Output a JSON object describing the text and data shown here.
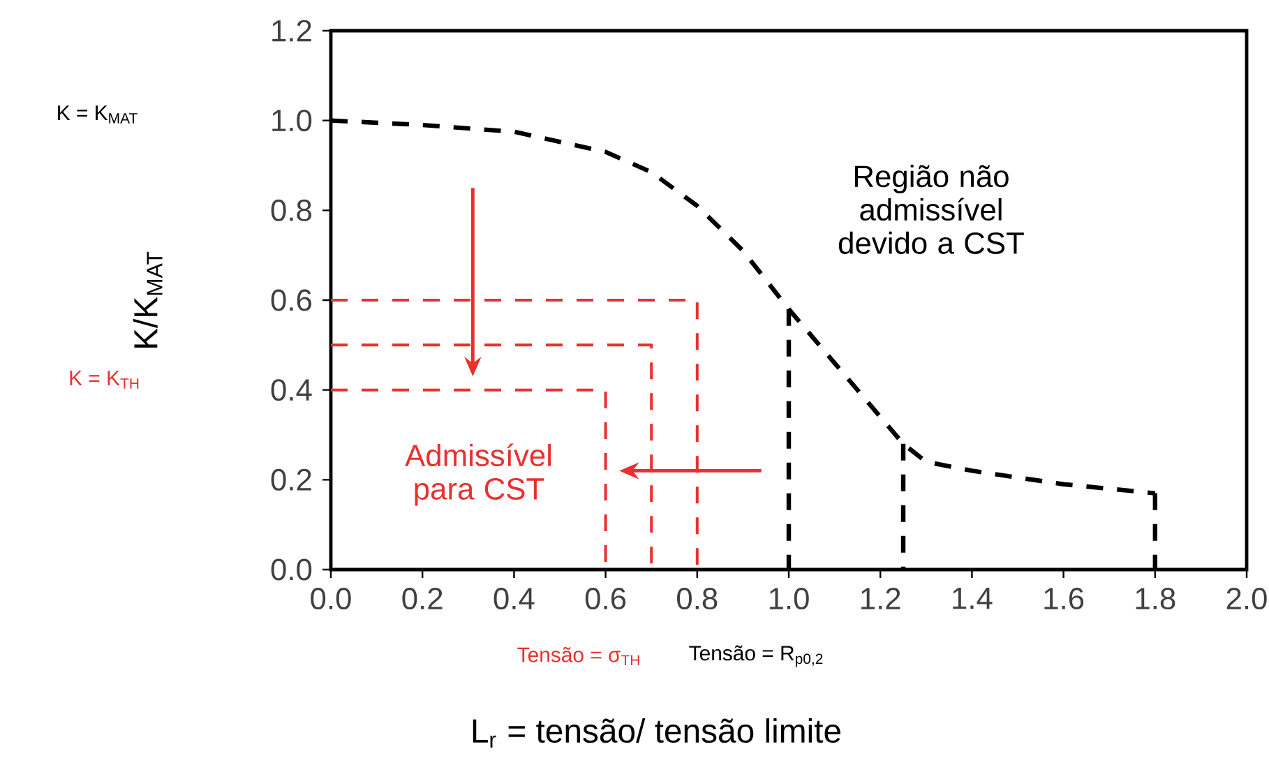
{
  "chart_data": {
    "type": "line",
    "xlabel": "L$_{r}$ = tensão/ tensão limite",
    "ylabel": "K/K$_{MAT}$",
    "xlim": [
      0,
      2.0
    ],
    "ylim": [
      0,
      1.2
    ],
    "xticks": [
      {
        "value": 0,
        "label": "0.0"
      },
      0.2,
      0.4,
      0.6,
      0.8,
      {
        "value": 1.0,
        "label": "1.0"
      },
      1.2,
      1.4,
      1.6,
      1.8,
      {
        "value": 2.0,
        "label": "2.0"
      }
    ],
    "yticks": [
      {
        "value": 0,
        "label": "0.0"
      },
      0.2,
      0.4,
      0.6,
      0.8,
      {
        "value": 1.0,
        "label": "1.0"
      },
      1.2
    ],
    "grid": false,
    "marker": "none",
    "series": [
      {
        "color": "#000000",
        "line_style": "dashed",
        "x": [
          0,
          0.2,
          0.4,
          0.6,
          0.7,
          0.8,
          0.9,
          1.0,
          1.1,
          1.2,
          1.25,
          1.3,
          1.4,
          1.6,
          1.8
        ],
        "values": [
          1.0,
          0.99,
          0.975,
          0.93,
          0.885,
          0.81,
          0.71,
          0.58,
          0.46,
          0.34,
          0.28,
          0.24,
          0.22,
          0.19,
          0.17
        ]
      },
      {
        "color": "#000000",
        "line_style": "dashed",
        "x": [
          1.0,
          1.0
        ],
        "values": [
          0.58,
          0
        ]
      },
      {
        "color": "#000000",
        "line_style": "dashed",
        "x": [
          1.25,
          1.25
        ],
        "values": [
          0.28,
          0
        ]
      },
      {
        "color": "#000000",
        "line_style": "dashed",
        "x": [
          1.8,
          1.8
        ],
        "values": [
          0.17,
          0
        ]
      },
      {
        "color": "#e8312f",
        "line_style": "dashed",
        "x": [
          0,
          0.8,
          0.8
        ],
        "values": [
          0.6,
          0.6,
          0
        ]
      },
      {
        "color": "#e8312f",
        "line_style": "dashed",
        "x": [
          0,
          0.7,
          0.7
        ],
        "values": [
          0.5,
          0.5,
          0
        ]
      },
      {
        "color": "#e8312f",
        "line_style": "dashed",
        "x": [
          0,
          0.6,
          0.6
        ],
        "values": [
          0.4,
          0.4,
          0
        ]
      }
    ],
    "annotations": [
      "Região não admissível devido a CST",
      "Admissível para CST",
      "K = K$_{MAT}$",
      "K = K$_{TH}$",
      "Tensão = σ$_{TH}$",
      "Tensão = R$_{p0,2}$"
    ]
  }
}
